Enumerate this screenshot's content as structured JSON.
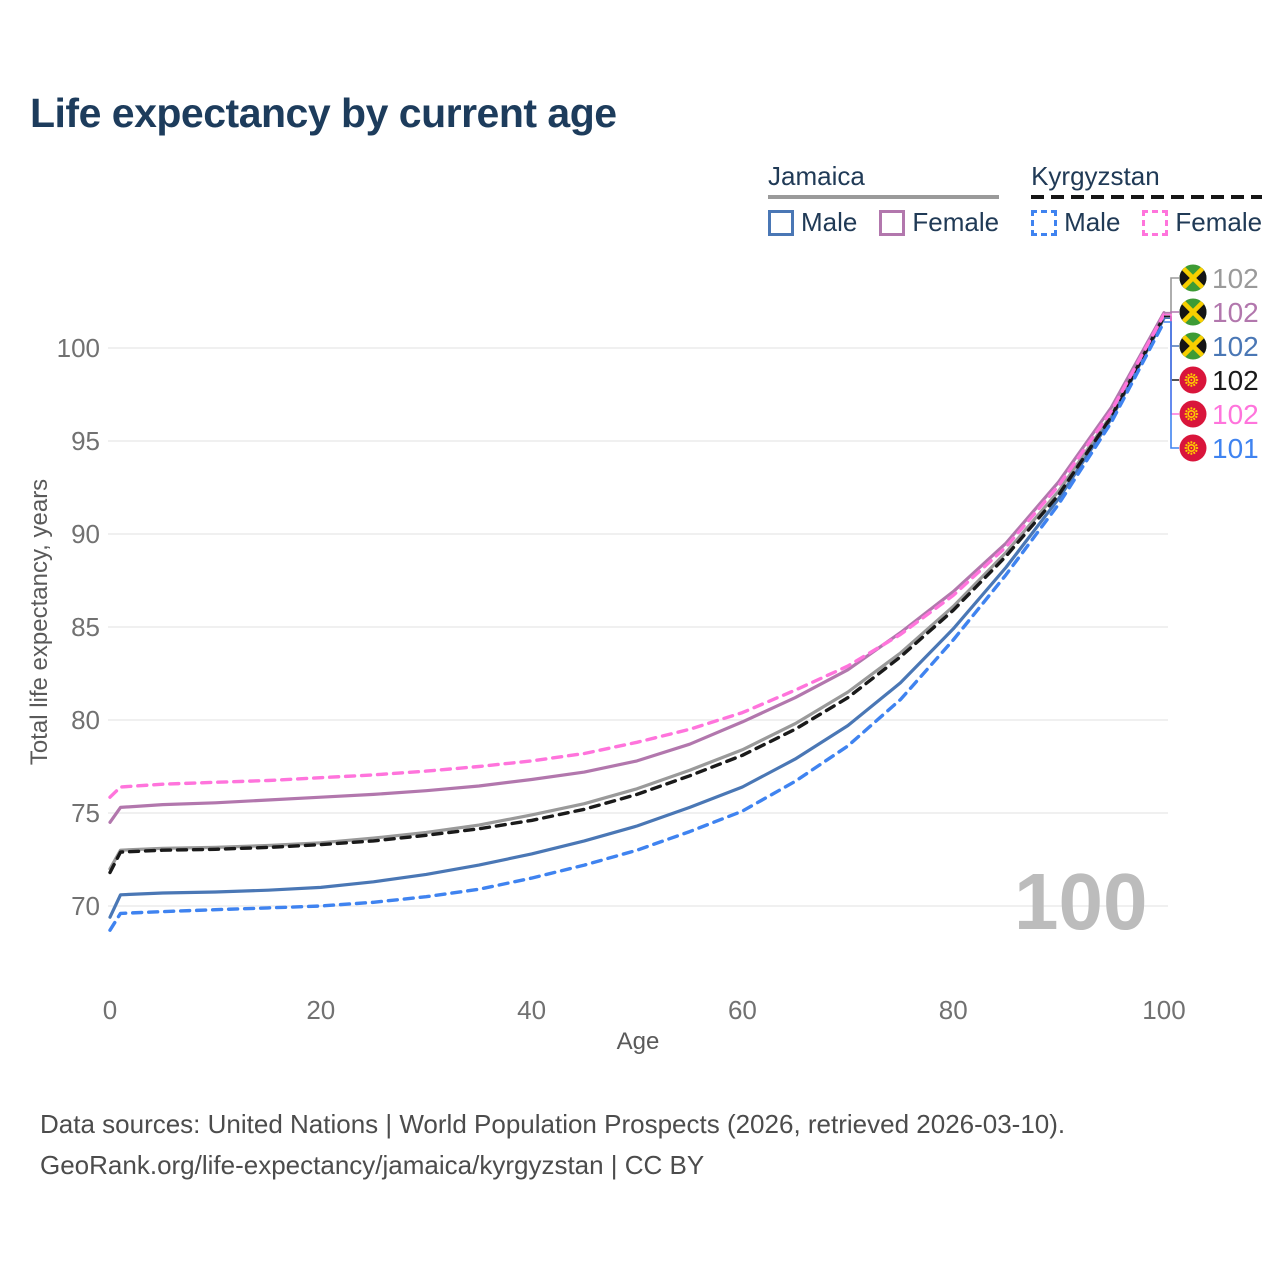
{
  "header": {
    "title": "Life expectancy by current age"
  },
  "legend": {
    "groups": [
      {
        "id": "jamaica",
        "label": "Jamaica",
        "line_style": "solid",
        "line_color": "#9a9a9a",
        "items": [
          {
            "id": "jamaica-male",
            "label": "Male",
            "color": "#4a77b5",
            "style": "solid"
          },
          {
            "id": "jamaica-female",
            "label": "Female",
            "color": "#b277ad",
            "style": "solid"
          }
        ]
      },
      {
        "id": "kyrgyzstan",
        "label": "Kyrgyzstan",
        "line_style": "dashed",
        "line_color": "#161616",
        "items": [
          {
            "id": "kyrgyzstan-male",
            "label": "Male",
            "color": "#3f83f0",
            "style": "dashed"
          },
          {
            "id": "kyrgyzstan-female",
            "label": "Female",
            "color": "#ff74dc",
            "style": "dashed"
          }
        ]
      }
    ]
  },
  "chart_data": {
    "type": "line",
    "title": "Life expectancy by current age",
    "xlabel": "Age",
    "ylabel": "Total life expectancy, years",
    "x_ticks": [
      0,
      20,
      40,
      60,
      80,
      100
    ],
    "y_ticks": [
      70,
      75,
      80,
      85,
      90,
      95,
      100
    ],
    "xlim": [
      0,
      100
    ],
    "ylim": [
      68,
      103
    ],
    "grid": "horizontal",
    "legend_position": "top-right",
    "age_watermark": "100",
    "ages": [
      0,
      1,
      5,
      10,
      15,
      20,
      25,
      30,
      35,
      40,
      45,
      50,
      55,
      60,
      65,
      70,
      75,
      80,
      85,
      90,
      95,
      100
    ],
    "series": [
      {
        "id": "jamaica-both",
        "name": "Jamaica - Both sexes",
        "country": "Jamaica",
        "sex": "Both sexes",
        "color": "#9a9a9a",
        "dash": "solid",
        "values": [
          72.0,
          73.0,
          73.1,
          73.15,
          73.25,
          73.4,
          73.65,
          73.95,
          74.35,
          74.9,
          75.5,
          76.3,
          77.3,
          78.4,
          79.8,
          81.5,
          83.6,
          86.1,
          89.0,
          92.3,
          96.4,
          101.8
        ]
      },
      {
        "id": "jamaica-female",
        "name": "Jamaica - Female",
        "country": "Jamaica",
        "sex": "Female",
        "color": "#b277ad",
        "dash": "solid",
        "values": [
          74.5,
          75.3,
          75.45,
          75.55,
          75.7,
          75.85,
          76.0,
          76.2,
          76.45,
          76.8,
          77.2,
          77.8,
          78.7,
          79.9,
          81.2,
          82.7,
          84.7,
          86.9,
          89.5,
          92.8,
          96.8,
          101.9
        ]
      },
      {
        "id": "jamaica-male",
        "name": "Jamaica - Male",
        "country": "Jamaica",
        "sex": "Male",
        "color": "#4a77b5",
        "dash": "solid",
        "values": [
          69.4,
          70.6,
          70.7,
          70.75,
          70.85,
          71.0,
          71.3,
          71.7,
          72.2,
          72.8,
          73.5,
          74.3,
          75.3,
          76.4,
          77.9,
          79.7,
          82.0,
          84.9,
          88.2,
          91.9,
          96.2,
          101.6
        ]
      },
      {
        "id": "kyrgyzstan-both",
        "name": "Kyrgyzstan - Both sexes",
        "country": "Kyrgyzstan",
        "sex": "Both sexes",
        "color": "#1a1a1a",
        "dash": "dashed",
        "values": [
          71.8,
          72.9,
          73.0,
          73.05,
          73.15,
          73.3,
          73.5,
          73.8,
          74.15,
          74.6,
          75.2,
          76.0,
          77.0,
          78.1,
          79.5,
          81.2,
          83.4,
          85.9,
          88.8,
          92.1,
          96.3,
          101.7
        ]
      },
      {
        "id": "kyrgyzstan-female",
        "name": "Kyrgyzstan - Female",
        "country": "Kyrgyzstan",
        "sex": "Female",
        "color": "#ff74dc",
        "dash": "dashed",
        "values": [
          75.85,
          76.4,
          76.55,
          76.65,
          76.75,
          76.9,
          77.05,
          77.25,
          77.5,
          77.8,
          78.2,
          78.8,
          79.5,
          80.4,
          81.6,
          82.9,
          84.6,
          86.7,
          89.3,
          92.6,
          96.6,
          101.8
        ]
      },
      {
        "id": "kyrgyzstan-male",
        "name": "Kyrgyzstan - Male",
        "country": "Kyrgyzstan",
        "sex": "Male",
        "color": "#3f83f0",
        "dash": "dashed",
        "values": [
          68.7,
          69.6,
          69.7,
          69.8,
          69.9,
          70.0,
          70.2,
          70.5,
          70.9,
          71.5,
          72.2,
          73.0,
          74.0,
          75.1,
          76.7,
          78.6,
          81.1,
          84.3,
          87.8,
          91.6,
          96.0,
          101.4
        ]
      }
    ],
    "end_labels": [
      {
        "series_id": "jamaica-both",
        "flag": "jamaica",
        "value": "102",
        "color": "#9a9a9a"
      },
      {
        "series_id": "jamaica-female",
        "flag": "jamaica",
        "value": "102",
        "color": "#b277ad"
      },
      {
        "series_id": "jamaica-male",
        "flag": "jamaica",
        "value": "102",
        "color": "#4a77b5"
      },
      {
        "series_id": "kyrgyzstan-both",
        "flag": "kyrgyzstan",
        "value": "102",
        "color": "#1a1a1a"
      },
      {
        "series_id": "kyrgyzstan-female",
        "flag": "kyrgyzstan",
        "value": "102",
        "color": "#ff74dc"
      },
      {
        "series_id": "kyrgyzstan-male",
        "flag": "kyrgyzstan",
        "value": "101",
        "color": "#3f83f0"
      }
    ]
  },
  "colors": {
    "title_text": "#1d3c5c",
    "legend_text": "#203a56",
    "gridline": "#e8e8e8",
    "tick_text": "#717171",
    "axis_title_text": "#5a5a5a",
    "watermark": "#bcbcbc",
    "footer_text": "#4c4c4c",
    "flag_jamaica_green": "#3d9b35",
    "flag_jamaica_gold": "#f7ce00",
    "flag_jamaica_black": "#141414",
    "flag_kyrgyzstan_red": "#d9153b",
    "flag_kyrgyzstan_sun": "#ffcc00"
  },
  "footer": {
    "line1": "Data sources: United Nations | World Population Prospects (2026, retrieved 2026-03-10).",
    "line2": "GeoRank.org/life-expectancy/jamaica/kyrgyzstan | CC BY"
  }
}
